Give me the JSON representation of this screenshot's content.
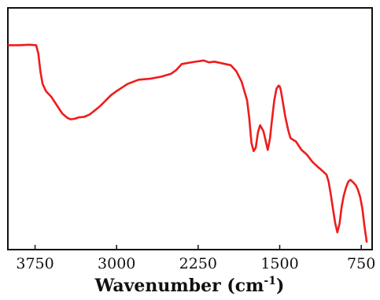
{
  "chart_data": {
    "type": "line",
    "title": "",
    "xlabel": "Wavenumber (cm",
    "xlabel_superscript": "-1",
    "xlabel_suffix": ")",
    "ylabel": "",
    "xlim": [
      4000,
      650
    ],
    "x_reversed": true,
    "y_axis_ticks_shown": false,
    "ylim": [
      0,
      1
    ],
    "grid": false,
    "legend": "none",
    "x_ticks": [
      3750,
      3000,
      2250,
      1500,
      750
    ],
    "x_tick_labels": [
      "3750",
      "3000",
      "2250",
      "1500",
      "750"
    ],
    "series": [
      {
        "color": "#ee1c1c",
        "x": [
          4000,
          3900,
          3800,
          3740,
          3720,
          3700,
          3680,
          3650,
          3600,
          3550,
          3500,
          3450,
          3420,
          3380,
          3350,
          3300,
          3250,
          3200,
          3150,
          3100,
          3050,
          3000,
          2950,
          2900,
          2800,
          2700,
          2600,
          2500,
          2450,
          2400,
          2300,
          2200,
          2150,
          2100,
          2050,
          2000,
          1950,
          1900,
          1850,
          1800,
          1780,
          1760,
          1740,
          1720,
          1700,
          1680,
          1650,
          1630,
          1610,
          1590,
          1570,
          1550,
          1530,
          1510,
          1500,
          1490,
          1470,
          1450,
          1420,
          1400,
          1350,
          1300,
          1250,
          1200,
          1150,
          1100,
          1070,
          1050,
          1030,
          1010,
          990,
          970,
          950,
          930,
          910,
          890,
          870,
          850,
          830,
          800,
          780,
          760,
          740,
          720,
          700
        ],
        "y": [
          0.855,
          0.855,
          0.857,
          0.855,
          0.82,
          0.74,
          0.69,
          0.66,
          0.635,
          0.6,
          0.565,
          0.545,
          0.54,
          0.543,
          0.548,
          0.55,
          0.56,
          0.578,
          0.597,
          0.62,
          0.643,
          0.66,
          0.675,
          0.69,
          0.708,
          0.712,
          0.72,
          0.733,
          0.75,
          0.775,
          0.783,
          0.79,
          0.782,
          0.785,
          0.78,
          0.775,
          0.77,
          0.745,
          0.7,
          0.62,
          0.545,
          0.44,
          0.405,
          0.42,
          0.485,
          0.515,
          0.49,
          0.45,
          0.41,
          0.458,
          0.54,
          0.62,
          0.67,
          0.683,
          0.68,
          0.665,
          0.61,
          0.555,
          0.49,
          0.46,
          0.445,
          0.41,
          0.39,
          0.36,
          0.338,
          0.318,
          0.305,
          0.275,
          0.22,
          0.16,
          0.1,
          0.06,
          0.095,
          0.17,
          0.218,
          0.25,
          0.275,
          0.283,
          0.275,
          0.26,
          0.24,
          0.21,
          0.16,
          0.085,
          0.02
        ]
      }
    ]
  }
}
